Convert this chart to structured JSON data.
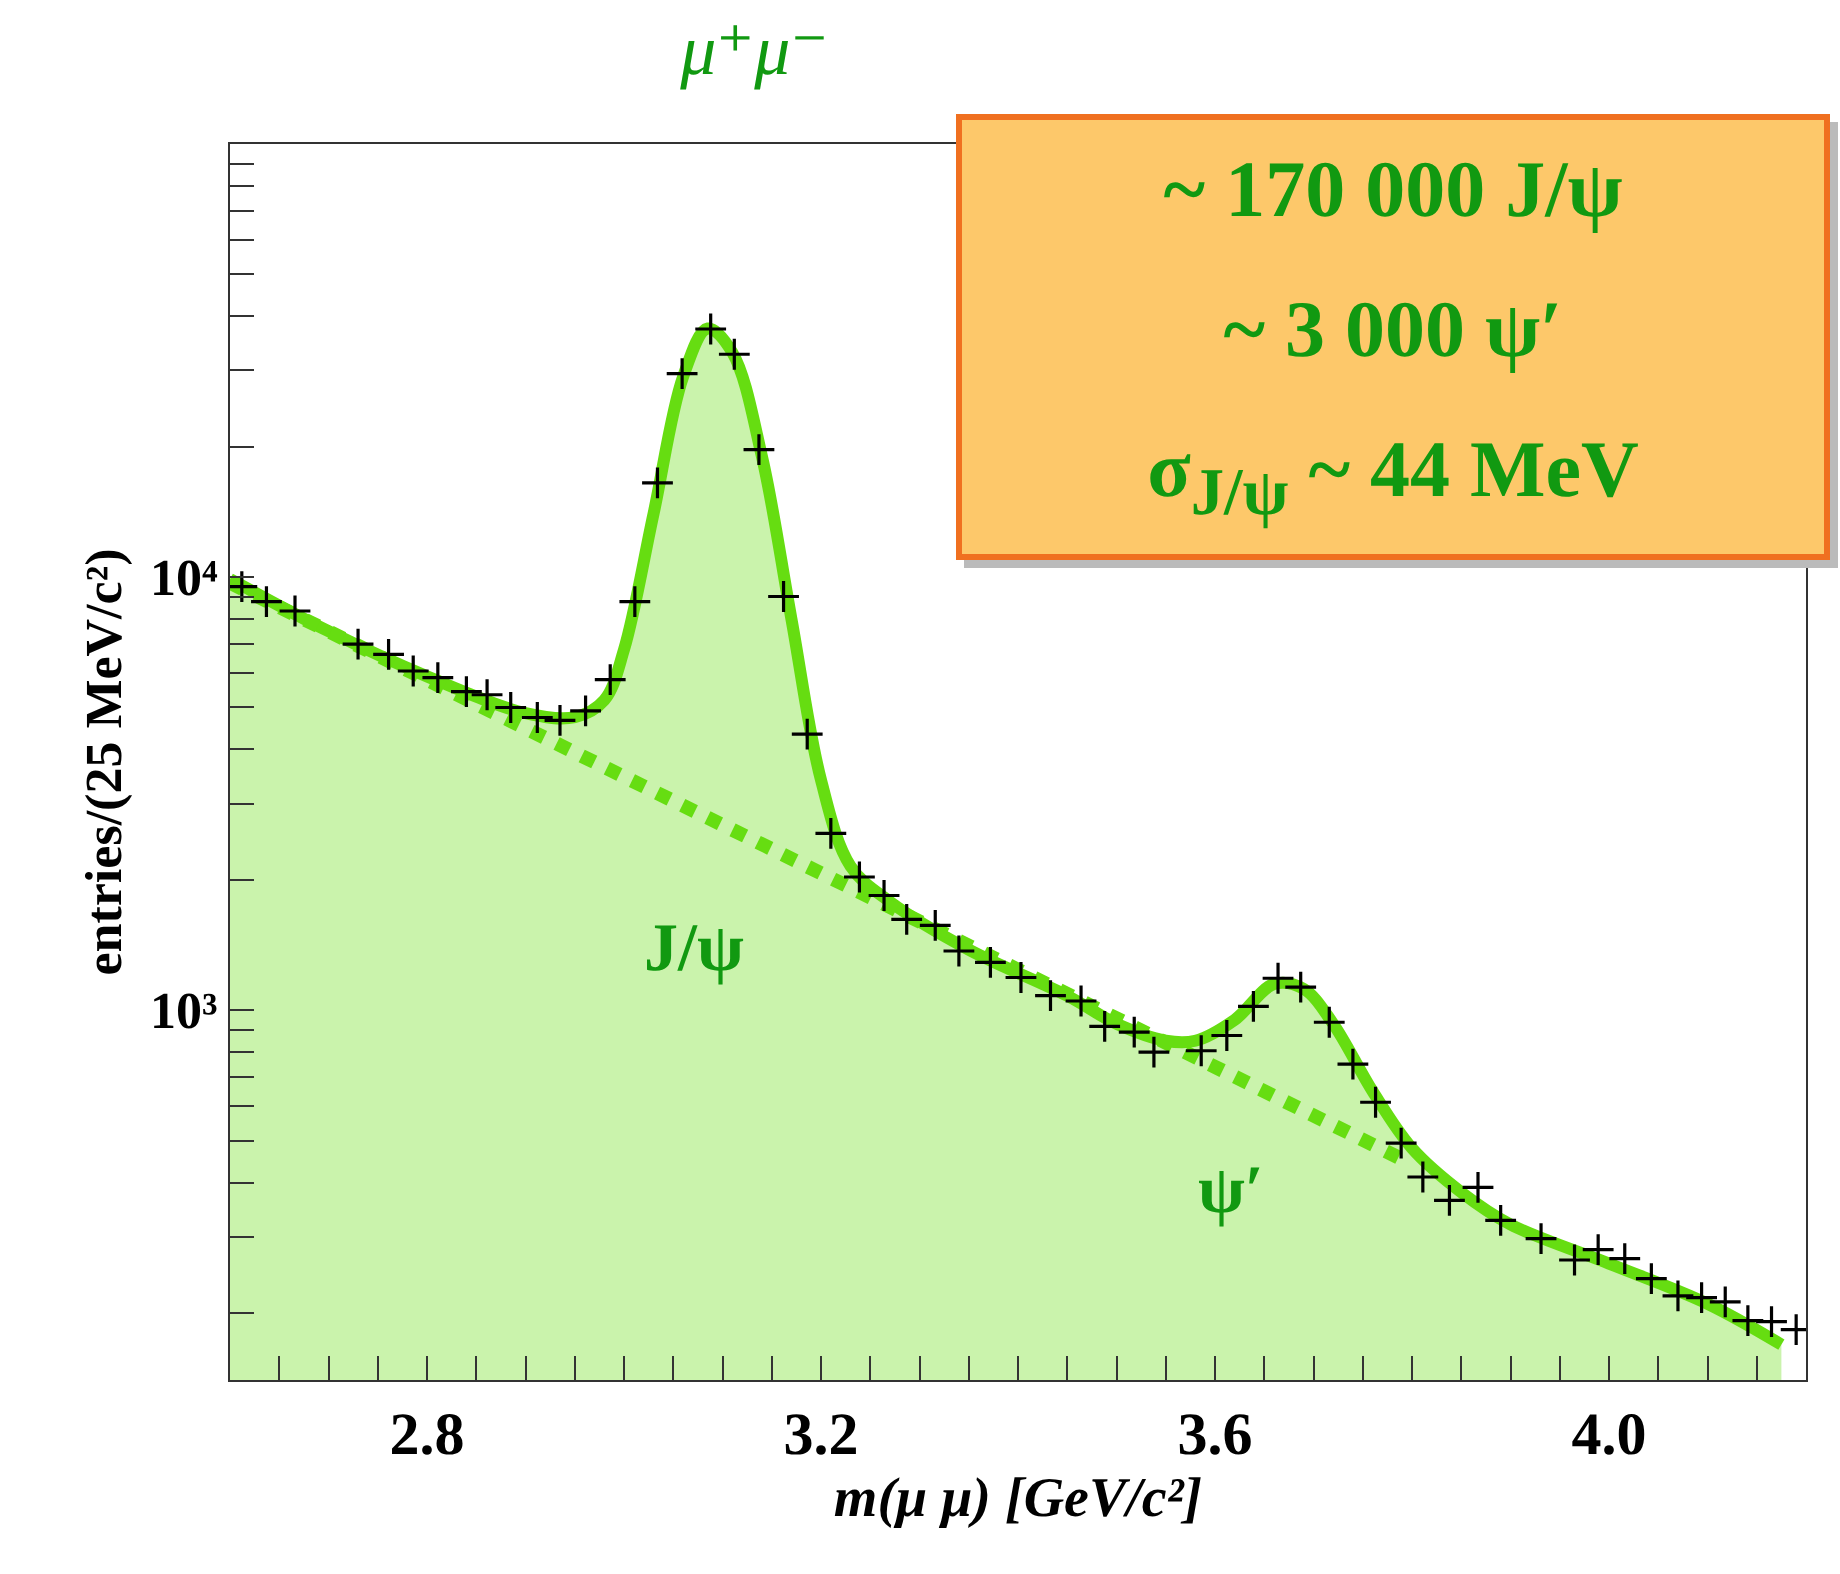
{
  "chart_data": {
    "type": "scatter",
    "title": "μ⁺μ⁻",
    "xlabel": "m(μ μ) [GeV/c²]",
    "ylabel": "entries/(25 MeV/c²)",
    "log": "y",
    "grid": false,
    "xlim": [
      2.6,
      4.2
    ],
    "ylim": [
      140,
      100000
    ],
    "xticks": [
      {
        "value": 2.65,
        "label": null
      },
      {
        "value": 2.7,
        "label": null
      },
      {
        "value": 2.75,
        "label": null
      },
      2.8,
      {
        "value": 2.85,
        "label": null
      },
      {
        "value": 2.9,
        "label": null
      },
      {
        "value": 2.95,
        "label": null
      },
      {
        "value": 3.0,
        "label": null
      },
      {
        "value": 3.05,
        "label": null
      },
      {
        "value": 3.1,
        "label": null
      },
      {
        "value": 3.15,
        "label": null
      },
      3.2,
      {
        "value": 3.25,
        "label": null
      },
      {
        "value": 3.3,
        "label": null
      },
      {
        "value": 3.35,
        "label": null
      },
      {
        "value": 3.4,
        "label": null
      },
      {
        "value": 3.45,
        "label": null
      },
      {
        "value": 3.5,
        "label": null
      },
      {
        "value": 3.55,
        "label": null
      },
      3.6,
      {
        "value": 3.65,
        "label": null
      },
      {
        "value": 3.7,
        "label": null
      },
      {
        "value": 3.75,
        "label": null
      },
      {
        "value": 3.8,
        "label": null
      },
      {
        "value": 3.85,
        "label": null
      },
      {
        "value": 3.9,
        "label": null
      },
      {
        "value": 3.95,
        "label": null
      },
      {
        "value": 4.0,
        "label": "4.0"
      },
      {
        "value": 4.05,
        "label": null
      },
      {
        "value": 4.1,
        "label": null
      },
      {
        "value": 4.15,
        "label": null
      }
    ],
    "yticks": [
      {
        "value": 200,
        "label": null
      },
      {
        "value": 300,
        "label": null
      },
      {
        "value": 400,
        "label": null
      },
      {
        "value": 500,
        "label": null
      },
      {
        "value": 600,
        "label": null
      },
      {
        "value": 700,
        "label": null
      },
      {
        "value": 800,
        "label": null
      },
      {
        "value": 900,
        "label": null
      },
      {
        "value": 1000,
        "label": "10³"
      },
      {
        "value": 2000,
        "label": null
      },
      {
        "value": 3000,
        "label": null
      },
      {
        "value": 4000,
        "label": null
      },
      {
        "value": 5000,
        "label": null
      },
      {
        "value": 6000,
        "label": null
      },
      {
        "value": 7000,
        "label": null
      },
      {
        "value": 8000,
        "label": null
      },
      {
        "value": 9000,
        "label": null
      },
      {
        "value": 10000,
        "label": "10⁴"
      },
      {
        "value": 20000,
        "label": null
      },
      {
        "value": 30000,
        "label": null
      },
      {
        "value": 40000,
        "label": null
      },
      {
        "value": 50000,
        "label": null
      },
      {
        "value": 60000,
        "label": null
      },
      {
        "value": 70000,
        "label": null
      },
      {
        "value": 80000,
        "label": null
      },
      {
        "value": 90000,
        "label": null
      }
    ],
    "series": [
      {
        "type": "area",
        "color": "#66dd11",
        "x": [
          2.6,
          2.7,
          2.8,
          2.9,
          2.95,
          2.98,
          3.0,
          3.03,
          3.06,
          3.085,
          3.11,
          3.14,
          3.17,
          3.2,
          3.23,
          3.27,
          3.35,
          3.45,
          3.5,
          3.55,
          3.58,
          3.62,
          3.66,
          3.69,
          3.72,
          3.76,
          3.8,
          3.85,
          3.9,
          4.0,
          4.1,
          4.175
        ],
        "values": [
          9900,
          7500,
          5900,
          4850,
          4750,
          5200,
          6800,
          14000,
          29000,
          37500,
          33000,
          19000,
          8000,
          3400,
          2150,
          1780,
          1380,
          1080,
          930,
          850,
          850,
          950,
          1150,
          1120,
          930,
          650,
          480,
          380,
          320,
          260,
          210,
          169
        ]
      },
      {
        "type": "line",
        "line_style": "dotted",
        "color": "#66dd11",
        "x": [
          2.6,
          3.0,
          3.4,
          3.795
        ],
        "values": [
          9700,
          3460,
          1240,
          447
        ]
      },
      {
        "marker": "cross",
        "color": "#000000",
        "x": [
          2.612,
          2.637,
          2.666,
          2.73,
          2.761,
          2.786,
          2.811,
          2.84,
          2.861,
          2.885,
          2.912,
          2.935,
          2.961,
          2.986,
          3.011,
          3.034,
          3.059,
          3.088,
          3.112,
          3.137,
          3.162,
          3.186,
          3.21,
          3.239,
          3.264,
          3.287,
          3.316,
          3.34,
          3.372,
          3.403,
          3.433,
          3.464,
          3.488,
          3.518,
          3.538,
          3.586,
          3.612,
          3.639,
          3.664,
          3.687,
          3.716,
          3.74,
          3.763,
          3.789,
          3.811,
          3.838,
          3.867,
          3.89,
          3.931,
          3.965,
          3.989,
          4.016,
          4.043,
          4.07,
          4.094,
          4.118,
          4.141,
          4.165,
          4.19
        ],
        "values": [
          9510,
          8780,
          8350,
          7000,
          6630,
          6070,
          5860,
          5440,
          5350,
          5000,
          4740,
          4670,
          4910,
          5800,
          8780,
          16500,
          29500,
          37400,
          32700,
          19700,
          9020,
          4340,
          2560,
          2030,
          1840,
          1620,
          1570,
          1370,
          1290,
          1190,
          1080,
          1050,
          918,
          890,
          800,
          806,
          874,
          1020,
          1185,
          1130,
          938,
          751,
          613,
          493,
          412,
          364,
          390,
          327,
          297,
          265,
          280,
          267,
          240,
          219,
          217,
          212,
          192,
          191,
          183
        ]
      }
    ],
    "annotations": [
      "~ 170 000 J/ψ",
      "~ 3 000 ψ′",
      "σ$_{J/ψ}$ ~ 44 MeV",
      "J/ψ",
      "ψ′"
    ]
  }
}
